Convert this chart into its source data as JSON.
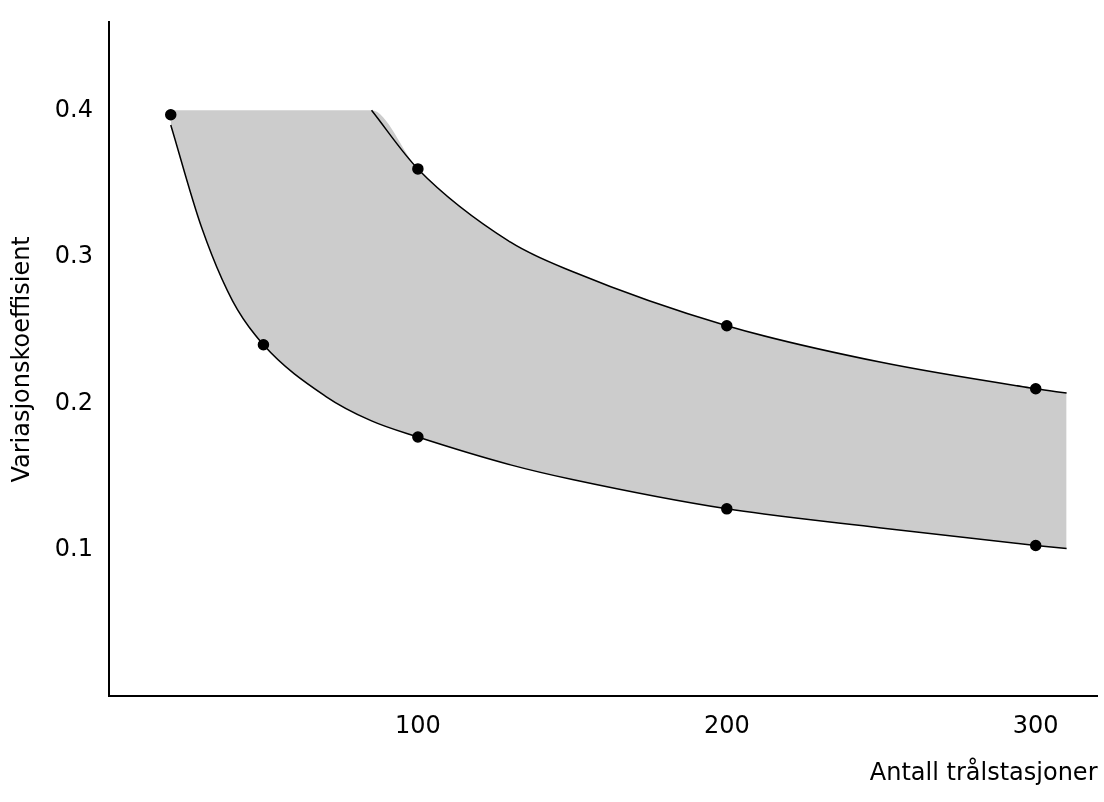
{
  "chart_data": {
    "type": "line",
    "xlabel": "Antall trålstasjoner",
    "ylabel": "Variasjonskoeffisient",
    "xlim": [
      0,
      320
    ],
    "ylim": [
      0,
      0.46
    ],
    "xticks": [
      100,
      200,
      300
    ],
    "yticks": [
      0.1,
      0.2,
      0.3,
      0.4
    ],
    "grid": false,
    "legend": false,
    "series": [
      {
        "color": "#000000",
        "marker": "none",
        "x": [
          20,
          30,
          40,
          50,
          70,
          85,
          100,
          130,
          150,
          200,
          250,
          300,
          310
        ],
        "values": [
          0.39,
          0.32,
          0.27,
          0.24,
          0.205,
          0.188,
          0.177,
          0.158,
          0.148,
          0.128,
          0.115,
          0.103,
          0.101
        ],
        "lower": [
          0.39,
          0.32,
          0.27,
          0.24,
          0.205,
          0.188,
          0.177,
          0.158,
          0.148,
          0.128,
          0.115,
          0.103,
          0.101
        ],
        "upper": [
          0.4,
          0.4,
          0.4,
          0.4,
          0.4,
          0.4,
          0.36,
          0.31,
          0.29,
          0.253,
          0.228,
          0.21,
          0.207
        ]
      },
      {
        "type": "line",
        "color": "#000000",
        "marker": "none",
        "x": [
          85,
          100,
          130,
          150,
          200,
          250,
          300,
          310
        ],
        "values": [
          0.4,
          0.36,
          0.31,
          0.29,
          0.253,
          0.228,
          0.21,
          0.207
        ]
      },
      {
        "type": "scatter",
        "color": "#000000",
        "marker": "circle",
        "x": [
          20,
          50,
          100,
          100,
          200,
          200,
          300,
          300
        ],
        "values": [
          0.397,
          0.24,
          0.177,
          0.36,
          0.128,
          0.253,
          0.103,
          0.21
        ]
      }
    ]
  }
}
